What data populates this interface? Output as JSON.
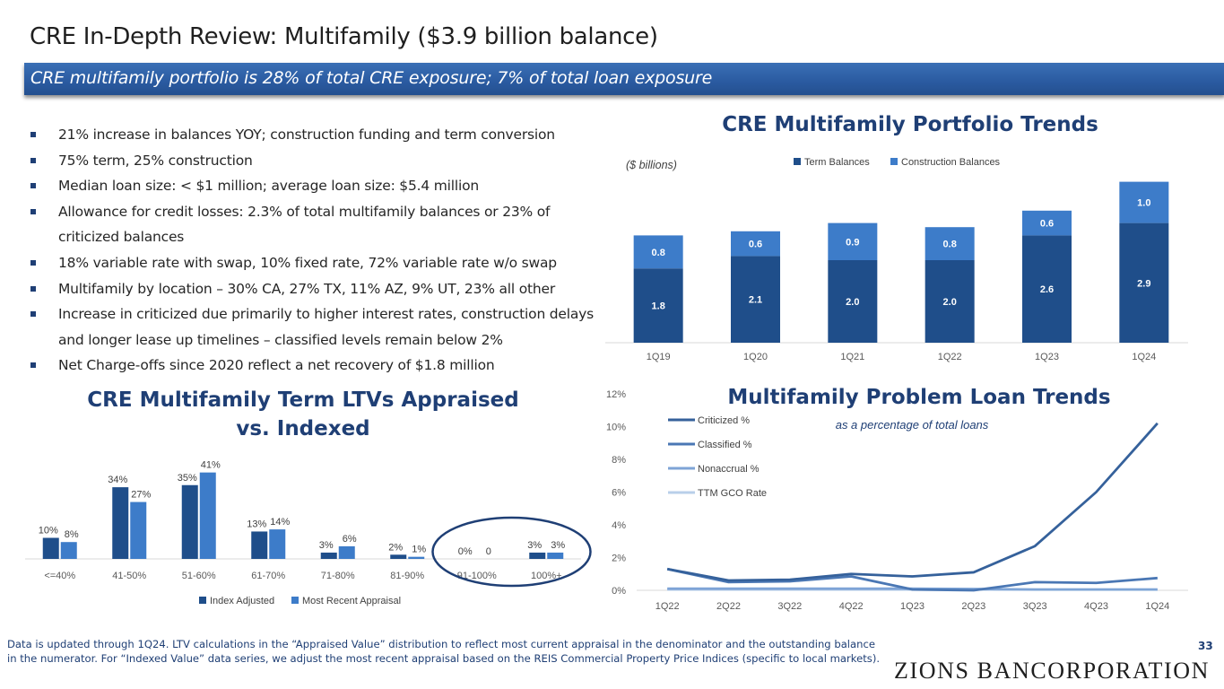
{
  "title": "CRE In-Depth Review: Multifamily ($3.9 billion balance)",
  "subtitle": "CRE multifamily portfolio is 28% of total CRE exposure; 7% of total loan exposure",
  "bullets": [
    "21% increase in balances YOY; construction funding and term conversion",
    "75% term, 25% construction",
    "Median loan size: < $1 million; average loan size: $5.4 million",
    "Allowance for credit losses: 2.3% of total multifamily balances or 23% of criticized balances",
    "18% variable rate with swap, 10% fixed rate, 72% variable rate w/o swap",
    "Multifamily by location – 30% CA, 27% TX, 11% AZ, 9% UT, 23% all other",
    "Increase in criticized due primarily to higher interest rates, construction delays and longer lease up timelines – classified levels remain below 2%",
    "Net Charge-offs since 2020 reflect a net recovery of $1.8 million"
  ],
  "colors": {
    "navy": "#1f4e8a",
    "blue": "#3d7cc9",
    "title_blue": "#1f3f75",
    "light": "#a9c4e3",
    "mid": "#7ea4d6"
  },
  "chart_data": [
    {
      "type": "bar",
      "stacked": true,
      "title": "CRE Multifamily Portfolio Trends",
      "unit_note": "($ billions)",
      "categories": [
        "1Q19",
        "1Q20",
        "1Q21",
        "1Q22",
        "1Q23",
        "1Q24"
      ],
      "series": [
        {
          "name": "Term Balances",
          "values": [
            1.8,
            2.1,
            2.0,
            2.0,
            2.6,
            2.9
          ],
          "labels": [
            "1.8",
            "2.1",
            "2.0",
            "2.0",
            "2.6",
            "2.9"
          ],
          "color": "#1f4e8a"
        },
        {
          "name": "Construction Balances",
          "values": [
            0.8,
            0.6,
            0.9,
            0.8,
            0.6,
            1.0
          ],
          "labels": [
            "0.8",
            "0.6",
            "0.9",
            "0.8",
            "0.6",
            "1.0"
          ],
          "color": "#3d7cc9"
        }
      ],
      "ylim": [
        0,
        4.0
      ],
      "legend": "top"
    },
    {
      "type": "bar",
      "title": "CRE Multifamily Term LTVs Appraised vs. Indexed",
      "categories": [
        "<=40%",
        "41-50%",
        "51-60%",
        "61-70%",
        "71-80%",
        "81-90%",
        "91-100%",
        "100%+"
      ],
      "series": [
        {
          "name": "Index Adjusted",
          "values": [
            10,
            34,
            35,
            13,
            3,
            2,
            0,
            3
          ],
          "labels": [
            "10%",
            "34%",
            "35%",
            "13%",
            "3%",
            "2%",
            "0%",
            "3%"
          ],
          "color": "#1f4e8a"
        },
        {
          "name": "Most Recent Appraisal",
          "values": [
            8,
            27,
            41,
            14,
            6,
            1,
            0,
            3
          ],
          "labels": [
            "8%",
            "27%",
            "41%",
            "14%",
            "6%",
            "1%",
            "0",
            "3%"
          ],
          "color": "#3d7cc9"
        }
      ],
      "ylim": [
        0,
        45
      ],
      "legend": "bottom",
      "highlight": "91-100% and 100%+ circled"
    },
    {
      "type": "line",
      "title": "Multifamily Problem Loan Trends",
      "subtitle": "as a percentage of total loans",
      "x": [
        "1Q22",
        "2Q22",
        "3Q22",
        "4Q22",
        "1Q23",
        "2Q23",
        "3Q23",
        "4Q23",
        "1Q24"
      ],
      "yticks": [
        "0%",
        "2%",
        "4%",
        "6%",
        "8%",
        "10%",
        "12%"
      ],
      "ylim": [
        0,
        12
      ],
      "series": [
        {
          "name": "Criticized %",
          "values": [
            1.3,
            0.6,
            0.65,
            1.0,
            0.85,
            1.1,
            2.7,
            6.0,
            10.2
          ],
          "color": "#35619b"
        },
        {
          "name": "Classified %",
          "values": [
            1.3,
            0.5,
            0.55,
            0.85,
            0.05,
            0.0,
            0.5,
            0.45,
            0.75
          ],
          "color": "#4a77b4"
        },
        {
          "name": "Nonaccrual %",
          "values": [
            0.1,
            0.1,
            0.1,
            0.1,
            0.1,
            0.08,
            0.05,
            0.05,
            0.05
          ],
          "color": "#7ea4d6"
        },
        {
          "name": "TTM GCO Rate",
          "values": [
            0.05,
            0.05,
            0.05,
            0.05,
            0.05,
            0.05,
            0.05,
            0.05,
            0.05
          ],
          "color": "#b9cfe9"
        }
      ],
      "legend": "top-left"
    }
  ],
  "footer": "Data is updated through 1Q24. LTV calculations in the “Appraised Value” distribution to reflect most current appraisal in the denominator and the outstanding balance in the numerator. For “Indexed Value” data series, we adjust the most recent appraisal based on the REIS Commercial Property Price Indices (specific to local markets).",
  "page_number": "33",
  "brand": "ZIONS BANCORPORATION"
}
